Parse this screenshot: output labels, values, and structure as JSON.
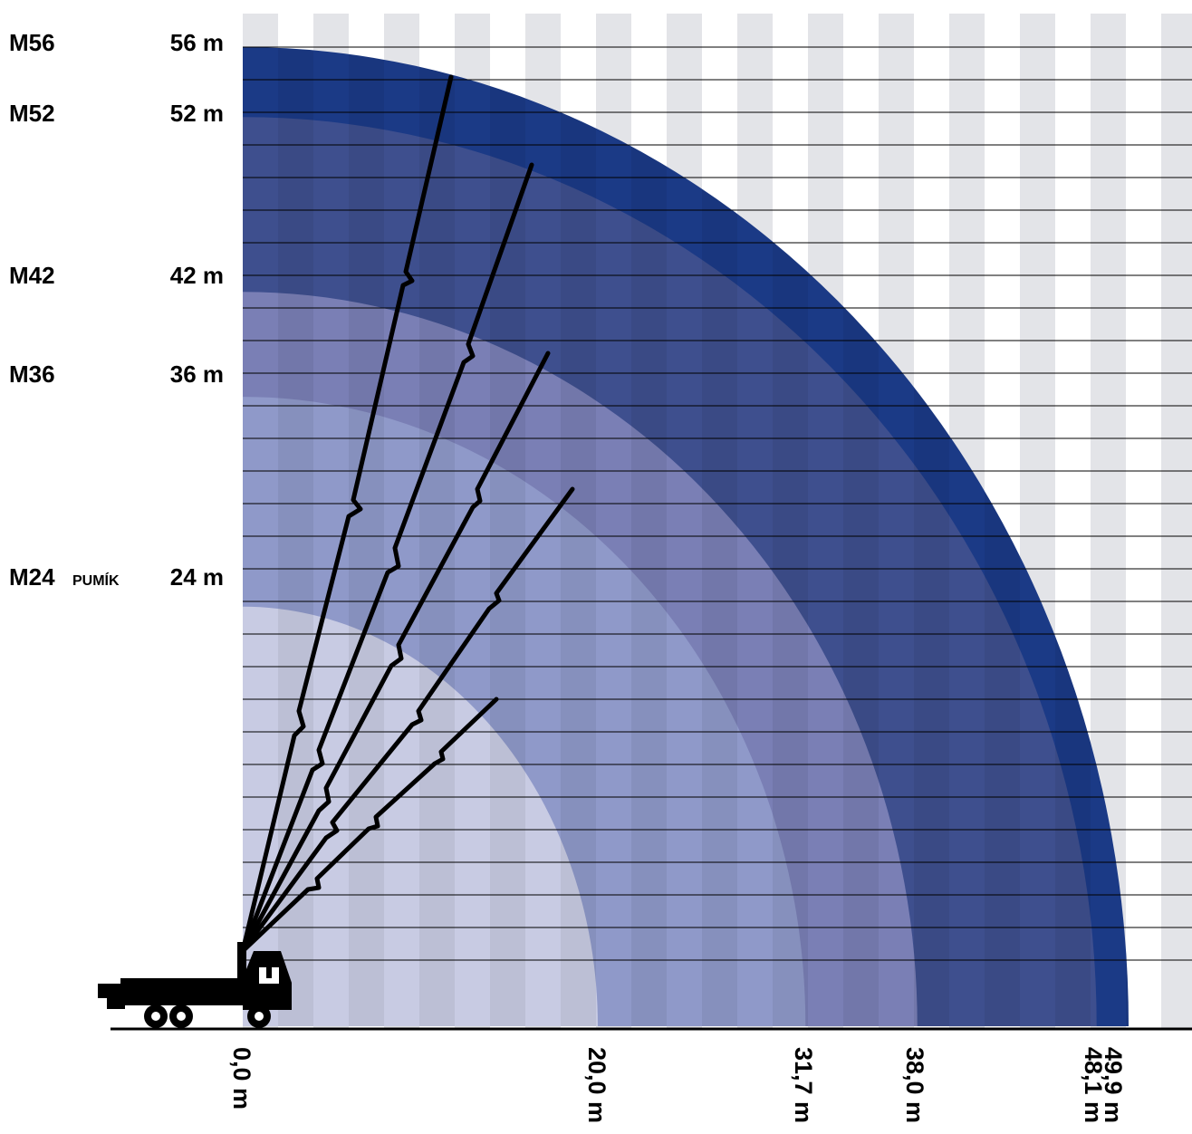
{
  "models": [
    {
      "code": "M56",
      "height_label": "56 m",
      "reach_label": "49,9 m",
      "height_m": 56,
      "reach_m": 49.9,
      "color": "#1b3a86"
    },
    {
      "code": "M52",
      "height_label": "52 m",
      "reach_label": "48,1 m",
      "height_m": 52,
      "reach_m": 48.1,
      "color": "#3e4f8e"
    },
    {
      "code": "M42",
      "height_label": "42 m",
      "reach_label": "38,0 m",
      "height_m": 42,
      "reach_m": 38.0,
      "color": "#7a7fb5"
    },
    {
      "code": "M36",
      "height_label": "36 m",
      "reach_label": "31,7 m",
      "height_m": 36,
      "reach_m": 31.7,
      "color": "#8f99c9"
    },
    {
      "code": "M24",
      "code_suffix": "PUMÍK",
      "height_label": "24 m",
      "reach_label": "20,0 m",
      "height_m": 24,
      "reach_m": 20.0,
      "color": "#c8cbe3"
    }
  ],
  "origin_label": "0,0 m",
  "colors": {
    "background_stripe": "#e3e4e8",
    "gridline": "#000000",
    "boom": "#000000",
    "truck": "#000000"
  },
  "icons": {
    "vehicle": "concrete-pump-truck-icon"
  }
}
